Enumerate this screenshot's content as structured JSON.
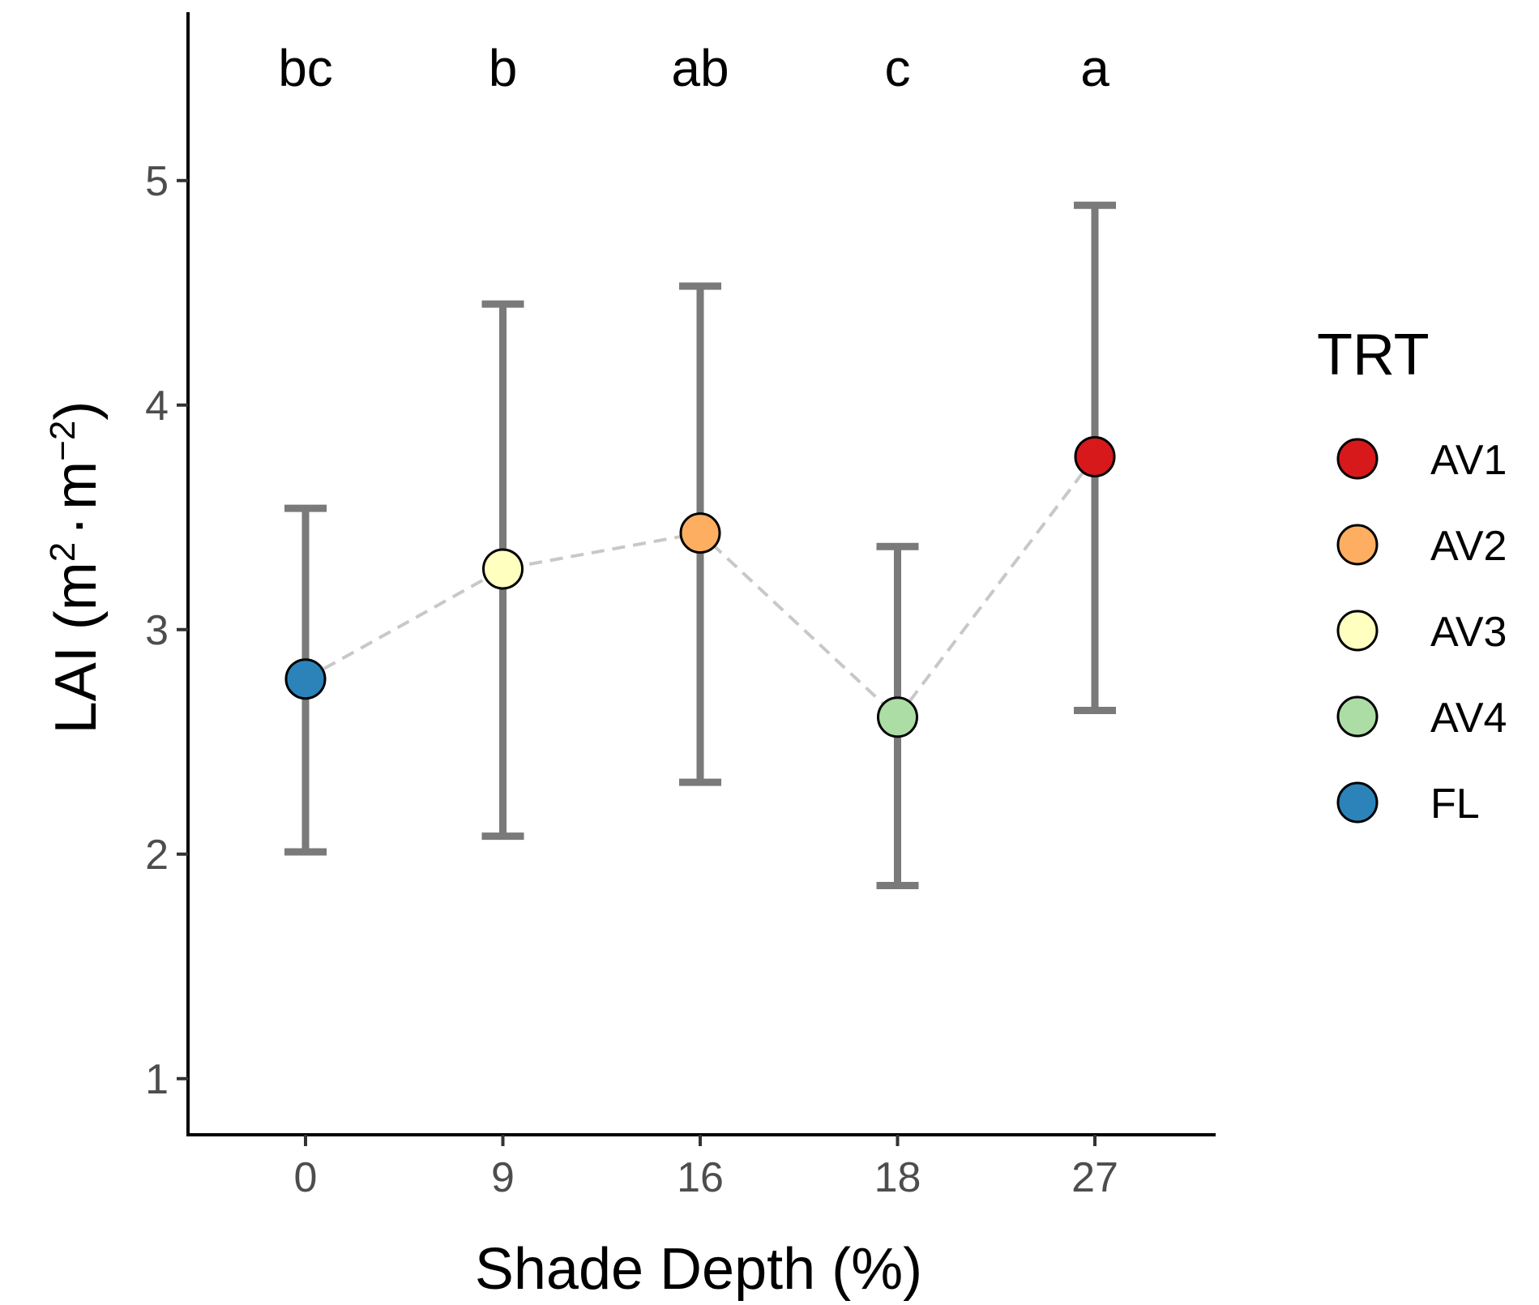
{
  "chart_data": {
    "type": "scatter",
    "xlabel": "Shade Depth (%)",
    "ylabel_base": "LAI",
    "ylabel_unit_parts": [
      "m",
      "2",
      "·",
      "m",
      "−2"
    ],
    "ylim": [
      0.75,
      5.75
    ],
    "yticks": [
      1,
      2,
      3,
      4,
      5
    ],
    "categories": [
      "0",
      "9",
      "16",
      "18",
      "27"
    ],
    "points": [
      {
        "x": "0",
        "group": "FL",
        "mean": 2.78,
        "lower": 2.01,
        "upper": 3.54,
        "letter": "bc"
      },
      {
        "x": "9",
        "group": "AV3",
        "mean": 3.27,
        "lower": 2.08,
        "upper": 4.45,
        "letter": "b"
      },
      {
        "x": "16",
        "group": "AV2",
        "mean": 3.43,
        "lower": 2.32,
        "upper": 4.53,
        "letter": "ab"
      },
      {
        "x": "18",
        "group": "AV4",
        "mean": 2.61,
        "lower": 1.86,
        "upper": 3.37,
        "letter": "c"
      },
      {
        "x": "27",
        "group": "AV1",
        "mean": 3.77,
        "lower": 2.64,
        "upper": 4.89,
        "letter": "a"
      }
    ],
    "connecting_line": {
      "style": "dashed",
      "color": "#c8c8c8"
    },
    "errorbar_color": "#7a7a7a",
    "legend": {
      "title": "TRT",
      "position": "right",
      "entries": [
        {
          "label": "AV1",
          "color": "#d7191c"
        },
        {
          "label": "AV2",
          "color": "#fdae61"
        },
        {
          "label": "AV3",
          "color": "#ffffbf"
        },
        {
          "label": "AV4",
          "color": "#abdda4"
        },
        {
          "label": "FL",
          "color": "#2b83ba"
        }
      ]
    }
  }
}
